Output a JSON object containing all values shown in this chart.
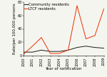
{
  "years": [
    2000,
    2001,
    2002,
    2003,
    2004,
    2005,
    2006,
    2007,
    2008,
    2009
  ],
  "community": [
    5,
    5,
    8,
    6,
    6,
    8,
    12,
    14,
    12,
    11
  ],
  "ltcf": [
    2,
    14,
    27,
    3,
    3,
    8,
    75,
    25,
    30,
    70
  ],
  "community_color": "#1a1a1a",
  "ltcf_color": "#e83000",
  "community_label": "Community residents",
  "ltcf_label": "LTCF residents",
  "xlabel": "Year of notification",
  "ylabel": "Rate/per 100,000 persons",
  "ylim": [
    0,
    80
  ],
  "yticks": [
    0,
    20,
    40,
    60,
    80
  ],
  "background_color": "#f5f5f0",
  "label_fontsize": 4.0,
  "tick_fontsize": 3.5,
  "legend_fontsize": 3.8,
  "linewidth": 0.7
}
